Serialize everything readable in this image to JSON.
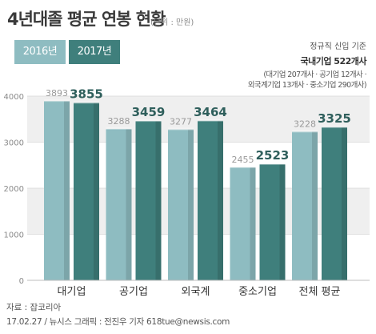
{
  "header": {
    "title": "4년대졸 평균 연봉 현황",
    "unit": "(단위 : 만원)"
  },
  "note": {
    "header": "정규직 신입 기준",
    "main": "국내기업 522개사",
    "line1": "(대기업 207개사 · 공기업 12개사 ·",
    "line2": "외국계기업 13개사 · 중소기업 290개사)"
  },
  "footer": {
    "source": "자료 : 잡코리아",
    "credit": "17.02.27 / 뉴시스 그래픽 : 전진우 기자 618tue@newsis.com"
  },
  "colors": {
    "series_2016": "#8ebcc1",
    "series_2017": "#3f7f7c",
    "band": "#efefef",
    "grid": "#d9d9d9"
  },
  "chart_data": {
    "type": "bar",
    "categories": [
      "대기업",
      "공기업",
      "외국계",
      "중소기업",
      "전체 평균"
    ],
    "series": [
      {
        "name": "2016년",
        "values": [
          3893,
          3288,
          3277,
          2455,
          3228
        ]
      },
      {
        "name": "2017년",
        "values": [
          3855,
          3459,
          3464,
          2523,
          3325
        ]
      }
    ],
    "yticks": [
      "0",
      "1000",
      "2000",
      "3000",
      "4000"
    ],
    "ylim": [
      0,
      4000
    ],
    "grid": true,
    "legend": "top-left"
  }
}
